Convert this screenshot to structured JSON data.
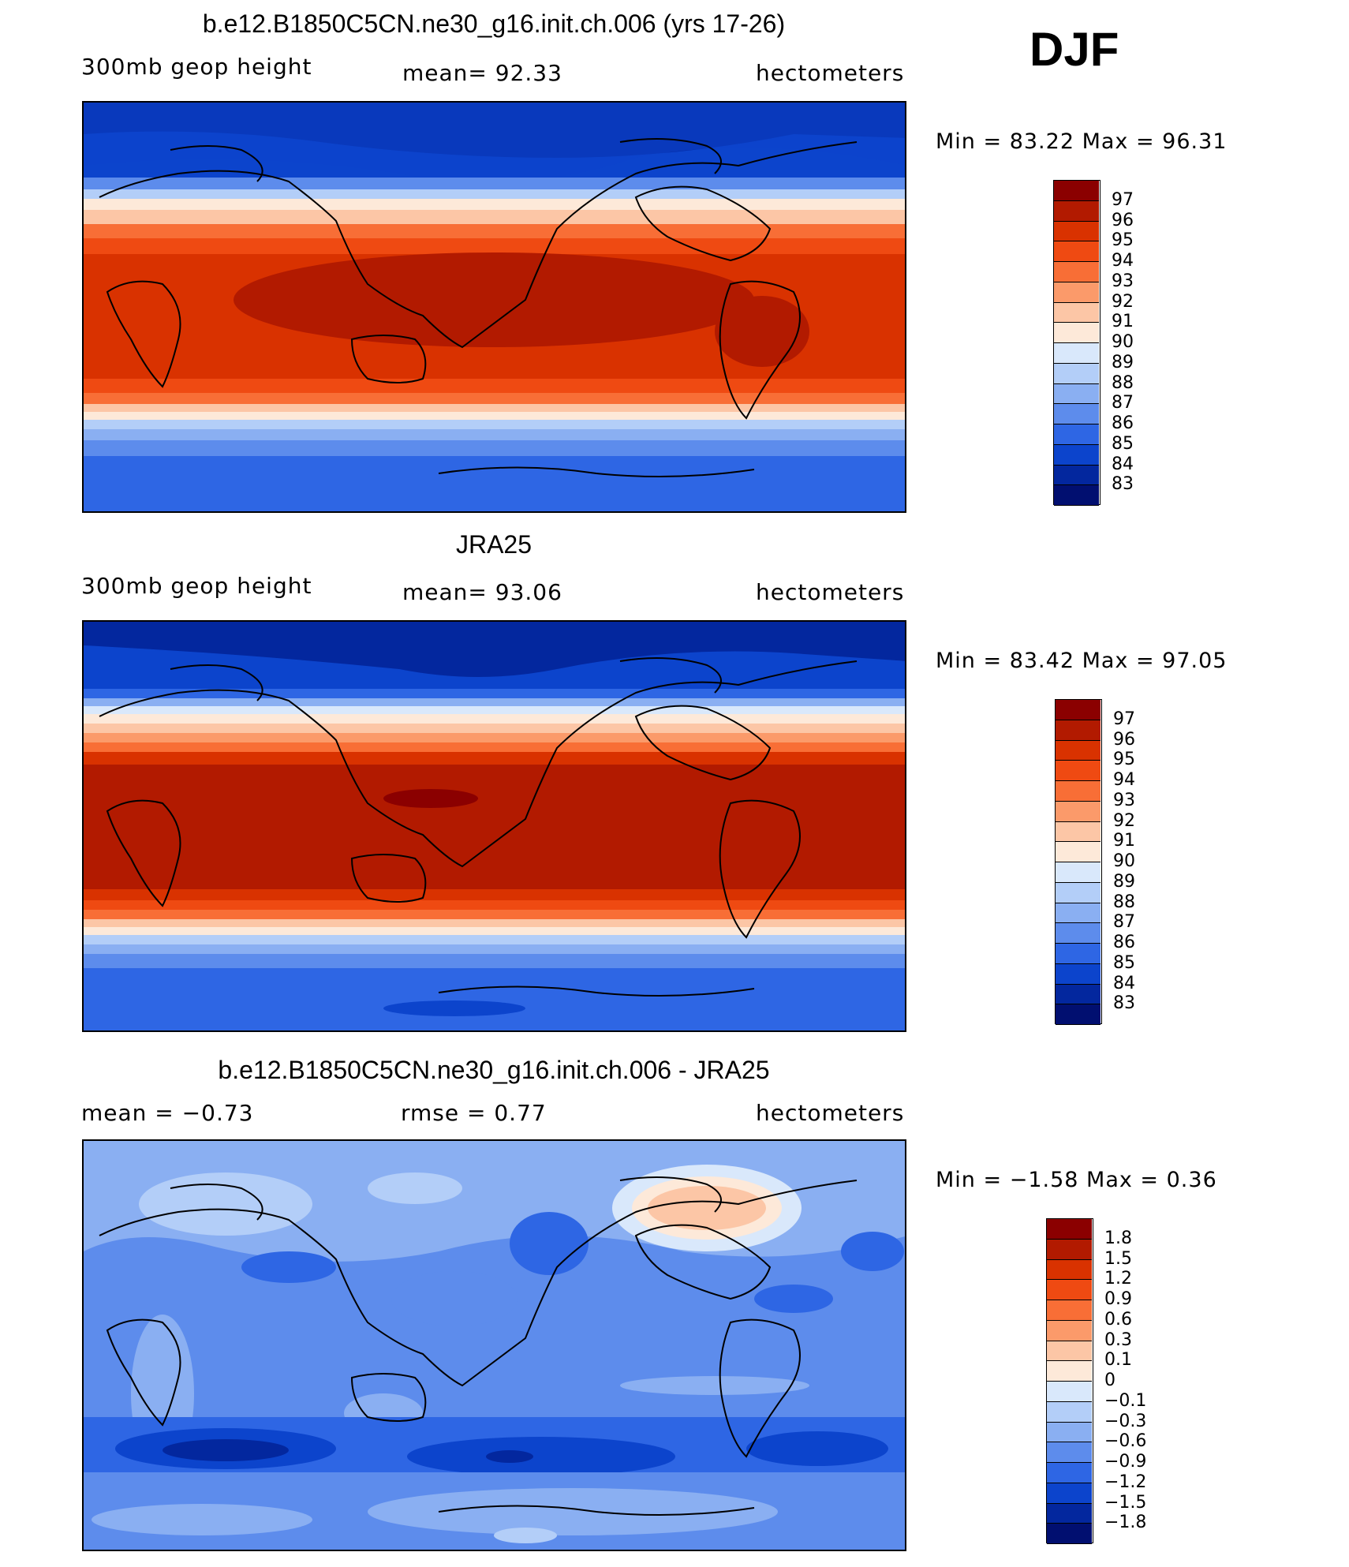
{
  "header": {
    "season": "DJF"
  },
  "panels": [
    {
      "id": "model",
      "title": "b.e12.B1850C5CN.ne30_g16.init.ch.006 (yrs 17-26)",
      "left_label": "300mb geop height",
      "center_label": "mean=  92.33",
      "right_label": "hectometers",
      "minmax": "Min =  83.22 Max =  96.31",
      "colorbar_labels": [
        "97",
        "96",
        "95",
        "94",
        "93",
        "92",
        "91",
        "90",
        "89",
        "88",
        "87",
        "86",
        "85",
        "84",
        "83"
      ],
      "colorbar_colors": [
        "#8b0000",
        "#b21a00",
        "#d93200",
        "#ef4a12",
        "#f86e36",
        "#fb9a6a",
        "#fcc6a6",
        "#fde9d9",
        "#d9e8fb",
        "#b3cef8",
        "#8aaff2",
        "#5d8cec",
        "#2e66e4",
        "#0c44cc",
        "#03279e",
        "#010f70"
      ],
      "stats": {
        "min": 83.22,
        "max": 96.31,
        "mean": 92.33,
        "units": "hectometers"
      }
    },
    {
      "id": "obs",
      "title": "JRA25",
      "left_label": "300mb geop height",
      "center_label": "mean=  93.06",
      "right_label": "hectometers",
      "minmax": "Min =  83.42 Max =  97.05",
      "colorbar_labels": [
        "97",
        "96",
        "95",
        "94",
        "93",
        "92",
        "91",
        "90",
        "89",
        "88",
        "87",
        "86",
        "85",
        "84",
        "83"
      ],
      "colorbar_colors": [
        "#8b0000",
        "#b21a00",
        "#d93200",
        "#ef4a12",
        "#f86e36",
        "#fb9a6a",
        "#fcc6a6",
        "#fde9d9",
        "#d9e8fb",
        "#b3cef8",
        "#8aaff2",
        "#5d8cec",
        "#2e66e4",
        "#0c44cc",
        "#03279e",
        "#010f70"
      ],
      "stats": {
        "min": 83.42,
        "max": 97.05,
        "mean": 93.06,
        "units": "hectometers"
      }
    },
    {
      "id": "diff",
      "title": "b.e12.B1850C5CN.ne30_g16.init.ch.006 - JRA25",
      "left_label": "mean =  −0.73",
      "center_label": "rmse =   0.77",
      "right_label": "hectometers",
      "minmax": "Min =  −1.58 Max =   0.36",
      "colorbar_labels": [
        "1.8",
        "1.5",
        "1.2",
        "0.9",
        "0.6",
        "0.3",
        "0.1",
        "0",
        "−0.1",
        "−0.3",
        "−0.6",
        "−0.9",
        "−1.2",
        "−1.5",
        "−1.8"
      ],
      "colorbar_colors": [
        "#8b0000",
        "#b21a00",
        "#d93200",
        "#ef4a12",
        "#f86e36",
        "#fb9a6a",
        "#fcc6a6",
        "#fde9d9",
        "#d9e8fb",
        "#b3cef8",
        "#8aaff2",
        "#5d8cec",
        "#2e66e4",
        "#0c44cc",
        "#03279e",
        "#010f70"
      ],
      "stats": {
        "min": -1.58,
        "max": 0.36,
        "mean": -0.73,
        "rmse": 0.77,
        "units": "hectometers"
      }
    }
  ],
  "colors": {
    "land_outline": "#000000",
    "background": "#ffffff"
  }
}
